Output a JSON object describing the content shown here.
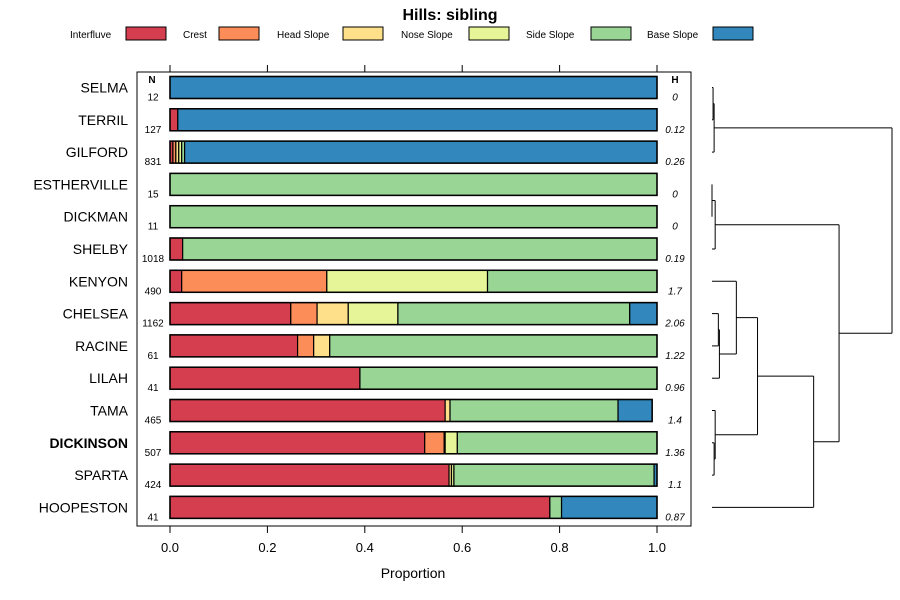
{
  "chart_data": {
    "type": "bar",
    "orientation": "horizontal",
    "stacked": true,
    "title": "Hills: sibling",
    "xlabel": "Proportion",
    "xlim": [
      0,
      1
    ],
    "xticks": [
      "0.0",
      "0.2",
      "0.4",
      "0.6",
      "0.8",
      "1.0"
    ],
    "n_header": "N",
    "h_header": "H",
    "legend": [
      {
        "name": "Interfluve",
        "color": "#D53E4F"
      },
      {
        "name": "Crest",
        "color": "#FC8D59"
      },
      {
        "name": "Head Slope",
        "color": "#FEE08B"
      },
      {
        "name": "Nose Slope",
        "color": "#E6F598"
      },
      {
        "name": "Side Slope",
        "color": "#99D594"
      },
      {
        "name": "Base Slope",
        "color": "#3288BD"
      }
    ],
    "rows": [
      {
        "label": "SELMA",
        "bold": false,
        "n": "12",
        "h": "0",
        "values": [
          0,
          0,
          0,
          0,
          0,
          1.0
        ]
      },
      {
        "label": "TERRIL",
        "bold": false,
        "n": "127",
        "h": "0.12",
        "values": [
          0.016,
          0,
          0,
          0,
          0,
          0.984
        ]
      },
      {
        "label": "GILFORD",
        "bold": false,
        "n": "831",
        "h": "0.26",
        "values": [
          0.006,
          0.006,
          0.006,
          0.006,
          0.006,
          0.97
        ]
      },
      {
        "label": "ESTHERVILLE",
        "bold": false,
        "n": "15",
        "h": "0",
        "values": [
          0,
          0,
          0,
          0,
          1.0,
          0
        ]
      },
      {
        "label": "DICKMAN",
        "bold": false,
        "n": "11",
        "h": "0",
        "values": [
          0,
          0,
          0,
          0,
          1.0,
          0
        ]
      },
      {
        "label": "SHELBY",
        "bold": false,
        "n": "1018",
        "h": "0.19",
        "values": [
          0.026,
          0,
          0,
          0,
          0.974,
          0
        ]
      },
      {
        "label": "KENYON",
        "bold": false,
        "n": "490",
        "h": "1.7",
        "values": [
          0.024,
          0.298,
          0,
          0.33,
          0.348,
          0
        ]
      },
      {
        "label": "CHELSEA",
        "bold": false,
        "n": "1162",
        "h": "2.06",
        "values": [
          0.248,
          0.054,
          0.064,
          0.102,
          0.476,
          0.056
        ]
      },
      {
        "label": "RACINE",
        "bold": false,
        "n": "61",
        "h": "1.22",
        "values": [
          0.262,
          0.033,
          0.033,
          0,
          0.672,
          0
        ]
      },
      {
        "label": "LILAH",
        "bold": false,
        "n": "41",
        "h": "0.96",
        "values": [
          0.39,
          0,
          0,
          0,
          0.61,
          0
        ]
      },
      {
        "label": "TAMA",
        "bold": false,
        "n": "465",
        "h": "1.4",
        "values": [
          0.565,
          0,
          0.01,
          0,
          0.345,
          0.07
        ]
      },
      {
        "label": "DICKINSON",
        "bold": true,
        "n": "507",
        "h": "1.36",
        "values": [
          0.523,
          0.04,
          0.002,
          0.025,
          0.41,
          0
        ]
      },
      {
        "label": "SPARTA",
        "bold": false,
        "n": "424",
        "h": "1.1",
        "values": [
          0.573,
          0,
          0.005,
          0.005,
          0.411,
          0.006
        ]
      },
      {
        "label": "HOOPESTON",
        "bold": false,
        "n": "41",
        "h": "0.87",
        "values": [
          0.78,
          0,
          0,
          0,
          0.024,
          0.196
        ]
      }
    ],
    "dendrogram": {
      "leaves": [
        "SELMA",
        "TERRIL",
        "GILFORD",
        "ESTHERVILLE",
        "DICKMAN",
        "SHELBY",
        "KENYON",
        "CHELSEA",
        "RACINE",
        "LILAH",
        "TAMA",
        "DICKINSON",
        "SPARTA",
        "HOOPESTON"
      ],
      "merges": [
        {
          "a": "L:SELMA",
          "b": "L:TERRIL",
          "height": 0.01
        },
        {
          "a": "M:0",
          "b": "L:GILFORD",
          "height": 0.02
        },
        {
          "a": "L:ESTHERVILLE",
          "b": "L:DICKMAN",
          "height": 0.0
        },
        {
          "a": "M:2",
          "b": "L:SHELBY",
          "height": 0.03
        },
        {
          "a": "L:CHELSEA",
          "b": "L:RACINE",
          "height": 0.06
        },
        {
          "a": "M:4",
          "b": "L:LILAH",
          "height": 0.07
        },
        {
          "a": "L:KENYON",
          "b": "M:5",
          "height": 0.23
        },
        {
          "a": "L:DICKINSON",
          "b": "L:SPARTA",
          "height": 0.02
        },
        {
          "a": "L:TAMA",
          "b": "M:7",
          "height": 0.03
        },
        {
          "a": "M:6",
          "b": "M:8",
          "height": 0.43
        },
        {
          "a": "M:9",
          "b": "L:HOOPESTON",
          "height": 0.96
        },
        {
          "a": "M:3",
          "b": "M:10",
          "height": 1.2
        },
        {
          "a": "M:1",
          "b": "M:11",
          "height": 1.7
        }
      ]
    }
  }
}
